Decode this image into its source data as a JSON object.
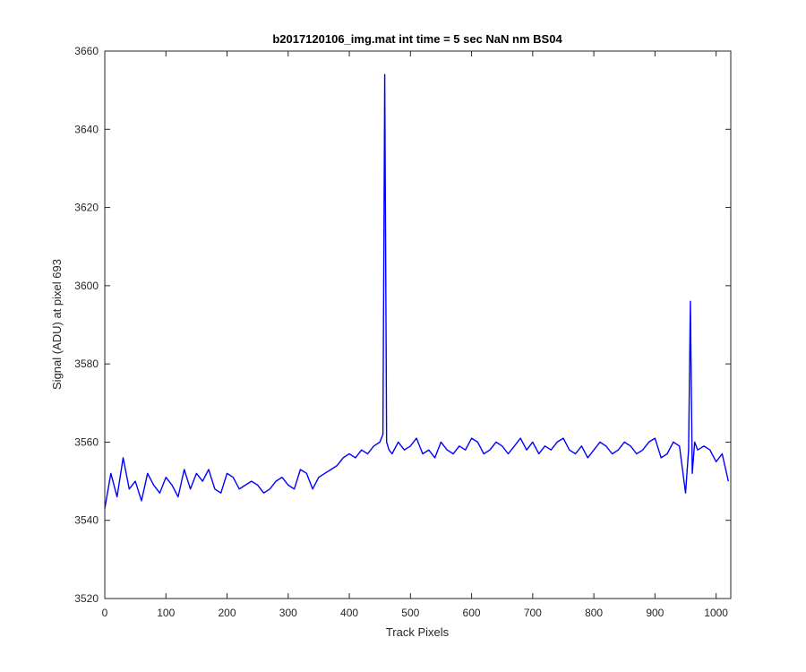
{
  "chart_data": {
    "type": "line",
    "title": "b2017120106_img.mat int time = 5 sec  NaN nm BS04",
    "xlabel": "Track Pixels",
    "ylabel": "Signal (ADU) at pixel 693",
    "xlim": [
      0,
      1024
    ],
    "ylim": [
      3520,
      3660
    ],
    "xticks": [
      0,
      100,
      200,
      300,
      400,
      500,
      600,
      700,
      800,
      900,
      1000
    ],
    "yticks": [
      3520,
      3540,
      3560,
      3580,
      3600,
      3620,
      3640,
      3660
    ],
    "grid": false,
    "line_color": "#0000ff",
    "series": [
      {
        "x": [
          0,
          10,
          20,
          30,
          40,
          50,
          60,
          70,
          80,
          90,
          100,
          110,
          120,
          130,
          140,
          150,
          160,
          170,
          180,
          190,
          200,
          210,
          220,
          230,
          240,
          250,
          260,
          270,
          280,
          290,
          300,
          310,
          320,
          330,
          340,
          350,
          360,
          370,
          380,
          390,
          400,
          410,
          420,
          430,
          440,
          450,
          455,
          458,
          461,
          465,
          470,
          480,
          490,
          500,
          510,
          520,
          530,
          540,
          550,
          560,
          570,
          580,
          590,
          600,
          610,
          620,
          630,
          640,
          650,
          660,
          670,
          680,
          690,
          700,
          710,
          720,
          730,
          740,
          750,
          760,
          770,
          780,
          790,
          800,
          810,
          820,
          830,
          840,
          850,
          860,
          870,
          880,
          890,
          900,
          910,
          920,
          930,
          940,
          950,
          955,
          958,
          961,
          965,
          970,
          980,
          990,
          1000,
          1010,
          1020
        ],
        "values": [
          3543,
          3552,
          3546,
          3556,
          3548,
          3550,
          3545,
          3552,
          3549,
          3547,
          3551,
          3549,
          3546,
          3553,
          3548,
          3552,
          3550,
          3553,
          3548,
          3547,
          3552,
          3551,
          3548,
          3549,
          3550,
          3549,
          3547,
          3548,
          3550,
          3551,
          3549,
          3548,
          3553,
          3552,
          3548,
          3551,
          3552,
          3553,
          3554,
          3556,
          3557,
          3556,
          3558,
          3557,
          3559,
          3560,
          3562,
          3654,
          3560,
          3558,
          3557,
          3560,
          3558,
          3559,
          3561,
          3557,
          3558,
          3556,
          3560,
          3558,
          3557,
          3559,
          3558,
          3561,
          3560,
          3557,
          3558,
          3560,
          3559,
          3557,
          3559,
          3561,
          3558,
          3560,
          3557,
          3559,
          3558,
          3560,
          3561,
          3558,
          3557,
          3559,
          3556,
          3558,
          3560,
          3559,
          3557,
          3558,
          3560,
          3559,
          3557,
          3558,
          3560,
          3561,
          3556,
          3557,
          3560,
          3559,
          3547,
          3558,
          3596,
          3552,
          3560,
          3558,
          3559,
          3558,
          3555,
          3557,
          3550
        ]
      }
    ]
  }
}
